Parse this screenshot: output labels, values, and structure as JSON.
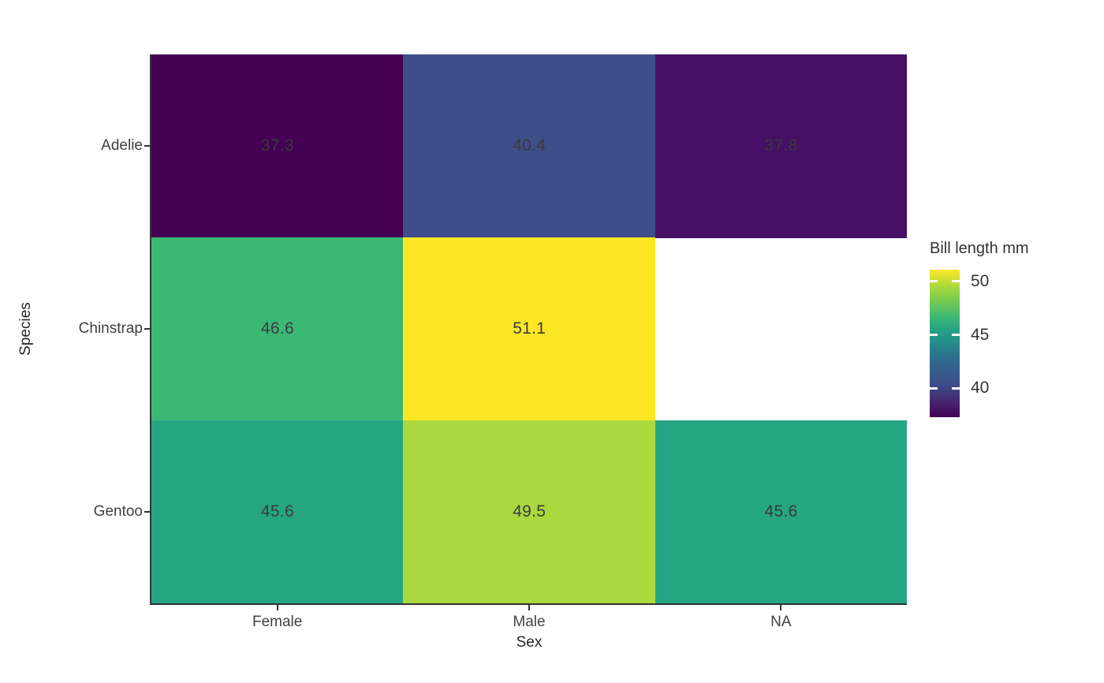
{
  "chart_data": {
    "type": "heatmap",
    "title": "",
    "xlabel": "Sex",
    "ylabel": "Species",
    "x_categories": [
      "Female",
      "Male",
      "NA"
    ],
    "y_categories": [
      "Adelie",
      "Chinstrap",
      "Gentoo"
    ],
    "values": [
      [
        37.3,
        40.4,
        37.8
      ],
      [
        46.6,
        51.1,
        null
      ],
      [
        45.6,
        49.5,
        45.6
      ]
    ],
    "cell_colors": [
      [
        "#440154",
        "#3E4E8A",
        "#451065"
      ],
      [
        "#3CB875",
        "#FDE725",
        null
      ],
      [
        "#26A583",
        "#A9D93E",
        "#26A583"
      ]
    ],
    "value_label_color": "#3a3a3a",
    "missing_cell_color": "#ffffff",
    "axis_line_color": "#333333",
    "background_color": "#ffffff",
    "legend": {
      "title": "Bill length mm",
      "position": "right",
      "limits": [
        37.3,
        51.1
      ],
      "ticks": [
        50,
        45,
        40
      ],
      "tick_mark_color": "#ffffff",
      "gradient": [
        {
          "pos": 0.0,
          "color": "#440154"
        },
        {
          "pos": 0.1,
          "color": "#46246F"
        },
        {
          "pos": 0.225,
          "color": "#3E4E8A"
        },
        {
          "pos": 0.4,
          "color": "#2E6D8E"
        },
        {
          "pos": 0.52,
          "color": "#24918C"
        },
        {
          "pos": 0.6,
          "color": "#26A583"
        },
        {
          "pos": 0.675,
          "color": "#3CB875"
        },
        {
          "pos": 0.8,
          "color": "#7BCC4E"
        },
        {
          "pos": 0.885,
          "color": "#A9D93E"
        },
        {
          "pos": 1.0,
          "color": "#FDE725"
        }
      ]
    }
  }
}
